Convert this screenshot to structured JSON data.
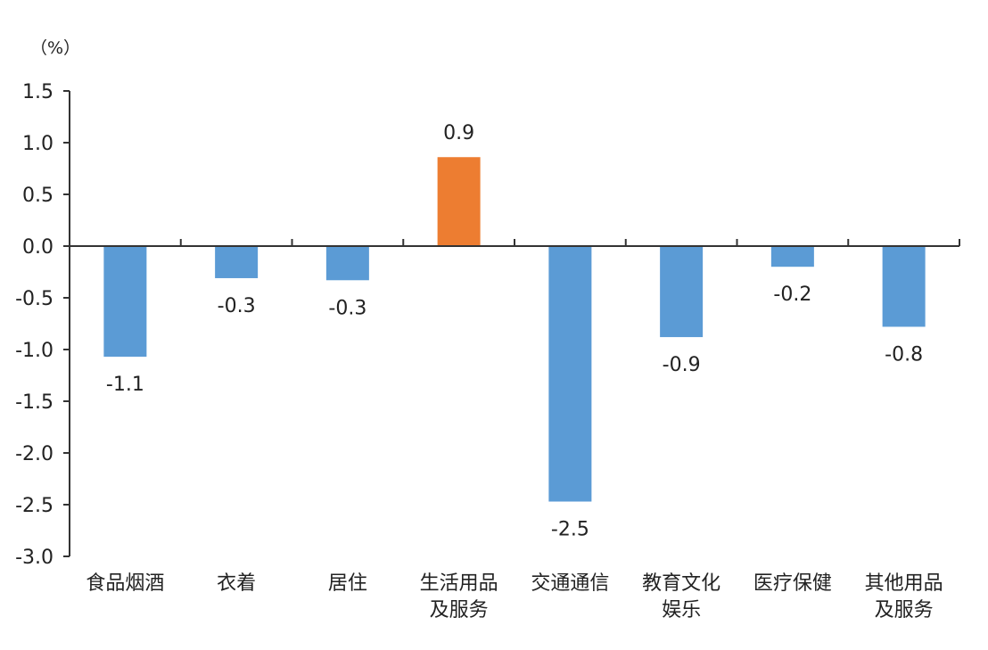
{
  "chart_data": {
    "type": "bar",
    "unit_label": "（%）",
    "categories": [
      [
        "食品烟酒"
      ],
      [
        "衣着"
      ],
      [
        "居住"
      ],
      [
        "生活用品",
        "及服务"
      ],
      [
        "交通通信"
      ],
      [
        "教育文化",
        "娱乐"
      ],
      [
        "医疗保健"
      ],
      [
        "其他用品",
        "及服务"
      ]
    ],
    "values": [
      -1.07,
      -0.31,
      -0.33,
      0.86,
      -2.47,
      -0.88,
      -0.2,
      -0.78
    ],
    "data_labels": [
      "-1.1",
      "-0.3",
      "-0.3",
      "0.9",
      "-2.5",
      "-0.9",
      "-0.2",
      "-0.8"
    ],
    "colors": [
      "#5B9BD5",
      "#5B9BD5",
      "#5B9BD5",
      "#ED7D31",
      "#5B9BD5",
      "#5B9BD5",
      "#5B9BD5",
      "#5B9BD5"
    ],
    "ylim": [
      -3.0,
      1.5
    ],
    "yticks": [
      1.5,
      1.0,
      0.5,
      0.0,
      -0.5,
      -1.0,
      -1.5,
      -2.0,
      -2.5,
      -3.0
    ],
    "ytick_labels": [
      "1.5",
      "1.0",
      "0.5",
      "0.0",
      "-0.5",
      "-1.0",
      "-1.5",
      "-2.0",
      "-2.5",
      "-3.0"
    ],
    "title": "",
    "xlabel": "",
    "ylabel": "",
    "grid": false,
    "legend": "none"
  }
}
